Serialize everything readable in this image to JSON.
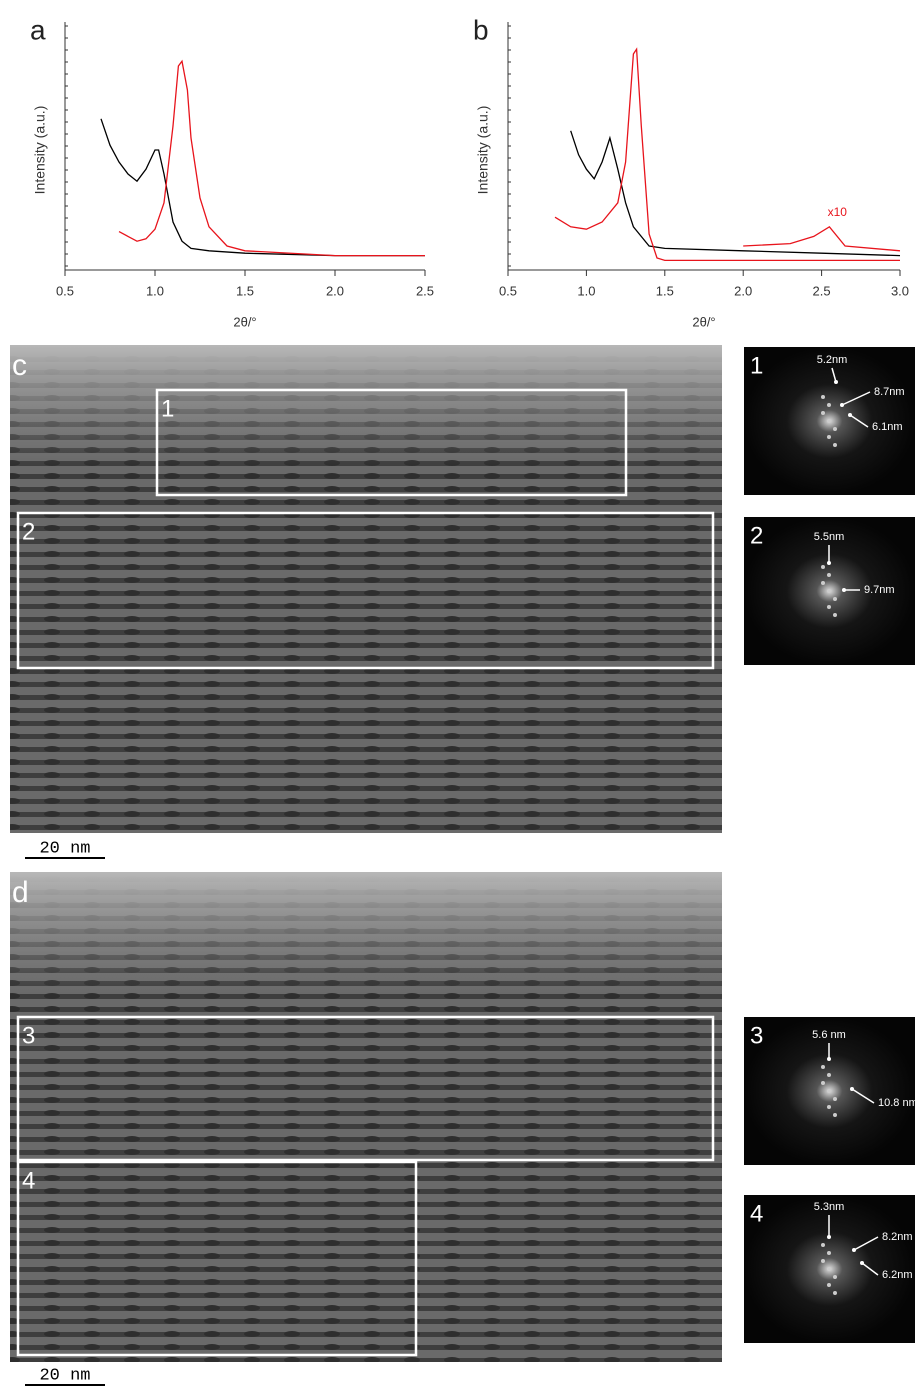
{
  "chart_data": [
    {
      "type": "line",
      "label": "a",
      "ylabel": "Intensity (a.u.)",
      "xlabel": "2θ/°",
      "xlim": [
        0.5,
        2.5
      ],
      "xticks": [
        0.5,
        {
          "value": 1,
          "label": "1.0"
        },
        1.5,
        {
          "value": 2,
          "label": "2.0"
        },
        2.5
      ],
      "ylim": [
        0,
        100
      ],
      "series": [
        {
          "color": "#000000",
          "x": [
            0.7,
            0.75,
            0.8,
            0.85,
            0.9,
            0.95,
            1.0,
            1.02,
            1.05,
            1.1,
            1.15,
            1.2,
            1.3,
            1.5,
            2.0,
            2.5
          ],
          "values": [
            63,
            52,
            45,
            40,
            37,
            42,
            50,
            50,
            40,
            20,
            12,
            9,
            8,
            7,
            6,
            6
          ]
        },
        {
          "color": "#e8141c",
          "x": [
            0.8,
            0.85,
            0.9,
            0.95,
            1.0,
            1.05,
            1.1,
            1.13,
            1.15,
            1.18,
            1.2,
            1.25,
            1.3,
            1.4,
            1.5,
            2.0,
            2.5
          ],
          "values": [
            16,
            14,
            12,
            13,
            17,
            28,
            60,
            85,
            87,
            75,
            55,
            30,
            18,
            10,
            8,
            6,
            6
          ]
        }
      ]
    },
    {
      "type": "line",
      "label": "b",
      "ylabel": "Intensity (a.u.)",
      "xlabel": "2θ/°",
      "xlim": [
        0.5,
        3.0
      ],
      "xticks": [
        0.5,
        {
          "value": 1,
          "label": "1.0"
        },
        1.5,
        {
          "value": 2,
          "label": "2.0"
        },
        2.5,
        {
          "value": 3,
          "label": "3.0"
        }
      ],
      "ylim": [
        0,
        100
      ],
      "annotation": "x10",
      "series": [
        {
          "color": "#000000",
          "x": [
            0.9,
            0.95,
            1.0,
            1.05,
            1.1,
            1.15,
            1.2,
            1.25,
            1.3,
            1.4,
            1.5,
            2.0,
            2.5,
            3.0
          ],
          "values": [
            58,
            48,
            42,
            38,
            45,
            55,
            42,
            28,
            18,
            10,
            9,
            8,
            7,
            6
          ]
        },
        {
          "color": "#e8141c",
          "x": [
            0.8,
            0.9,
            1.0,
            1.1,
            1.2,
            1.25,
            1.3,
            1.32,
            1.35,
            1.4,
            1.45,
            1.5,
            2.0,
            3.0
          ],
          "values": [
            22,
            18,
            17,
            20,
            28,
            45,
            90,
            92,
            60,
            15,
            5,
            4,
            4,
            4
          ]
        },
        {
          "color": "#e8141c",
          "x": [
            2.0,
            2.3,
            2.45,
            2.55,
            2.65,
            3.0
          ],
          "values": [
            10,
            11,
            14,
            18,
            10,
            8
          ]
        }
      ]
    }
  ],
  "images": [
    {
      "label": "c",
      "scale_bar": "20 nm",
      "regions": [
        {
          "label": "1",
          "fft": [
            "5.2nm",
            "8.7nm",
            "6.1nm"
          ]
        },
        {
          "label": "2",
          "fft": [
            "5.5nm",
            "9.7nm"
          ]
        }
      ]
    },
    {
      "label": "d",
      "scale_bar": "20 nm",
      "regions": [
        {
          "label": "3",
          "fft": [
            "5.6 nm",
            "10.8 nm"
          ]
        },
        {
          "label": "4",
          "fft": [
            "5.3nm",
            "8.2nm",
            "6.2nm"
          ]
        }
      ]
    }
  ]
}
